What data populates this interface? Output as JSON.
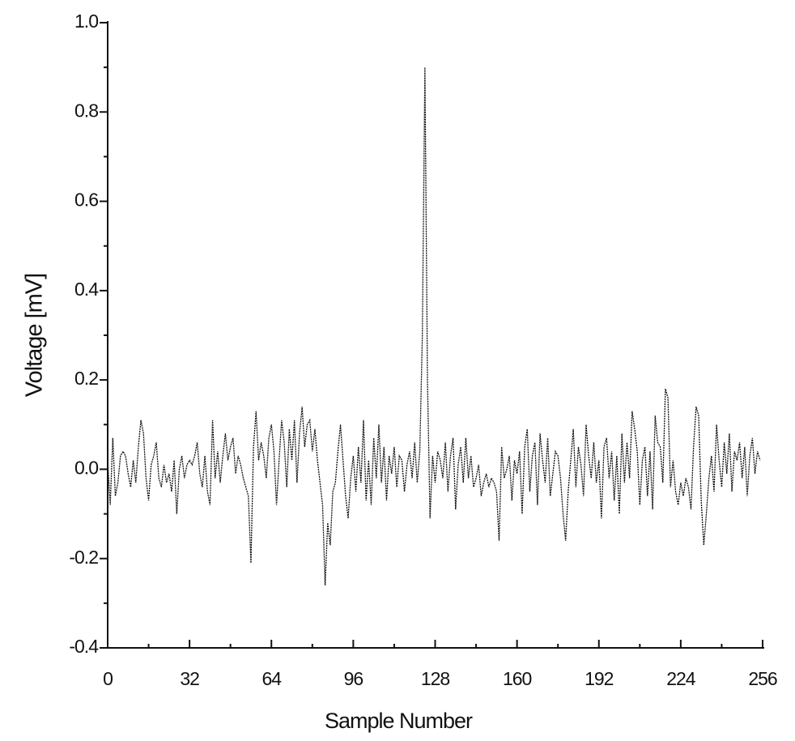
{
  "chart_data": {
    "type": "line",
    "xlabel": "Sample Number",
    "ylabel": "Voltage [mV]",
    "x": [
      0,
      1,
      2,
      3,
      4,
      5,
      6,
      7,
      8,
      9,
      10,
      11,
      12,
      13,
      14,
      15,
      16,
      17,
      18,
      19,
      20,
      21,
      22,
      23,
      24,
      25,
      26,
      27,
      28,
      29,
      30,
      31,
      32,
      33,
      34,
      35,
      36,
      37,
      38,
      39,
      40,
      41,
      42,
      43,
      44,
      45,
      46,
      47,
      48,
      49,
      50,
      51,
      52,
      53,
      54,
      55,
      56,
      57,
      58,
      59,
      60,
      61,
      62,
      63,
      64,
      65,
      66,
      67,
      68,
      69,
      70,
      71,
      72,
      73,
      74,
      75,
      76,
      77,
      78,
      79,
      80,
      81,
      82,
      83,
      84,
      85,
      86,
      87,
      88,
      89,
      90,
      91,
      92,
      93,
      94,
      95,
      96,
      97,
      98,
      99,
      100,
      101,
      102,
      103,
      104,
      105,
      106,
      107,
      108,
      109,
      110,
      111,
      112,
      113,
      114,
      115,
      116,
      117,
      118,
      119,
      120,
      121,
      122,
      123,
      124,
      125,
      126,
      127,
      128,
      129,
      130,
      131,
      132,
      133,
      134,
      135,
      136,
      137,
      138,
      139,
      140,
      141,
      142,
      143,
      144,
      145,
      146,
      147,
      148,
      149,
      150,
      151,
      152,
      153,
      154,
      155,
      156,
      157,
      158,
      159,
      160,
      161,
      162,
      163,
      164,
      165,
      166,
      167,
      168,
      169,
      170,
      171,
      172,
      173,
      174,
      175,
      176,
      177,
      178,
      179,
      180,
      181,
      182,
      183,
      184,
      185,
      186,
      187,
      188,
      189,
      190,
      191,
      192,
      193,
      194,
      195,
      196,
      197,
      198,
      199,
      200,
      201,
      202,
      203,
      204,
      205,
      206,
      207,
      208,
      209,
      210,
      211,
      212,
      213,
      214,
      215,
      216,
      217,
      218,
      219,
      220,
      221,
      222,
      223,
      224,
      225,
      226,
      227,
      228,
      229,
      230,
      231,
      232,
      233,
      234,
      235,
      236,
      237,
      238,
      239,
      240,
      241,
      242,
      243,
      244,
      245,
      246,
      247,
      248,
      249,
      250,
      251,
      252,
      253,
      254,
      255
    ],
    "series": [
      {
        "color": "#111111",
        "values": [
          0.02,
          -0.08,
          0.07,
          -0.06,
          -0.03,
          0.03,
          0.04,
          0.03,
          -0.01,
          -0.04,
          0.02,
          -0.03,
          0.05,
          0.11,
          0.08,
          -0.02,
          -0.07,
          0.01,
          0.03,
          0.06,
          -0.02,
          -0.04,
          0.01,
          -0.03,
          -0.01,
          -0.05,
          0.02,
          -0.1,
          0.0,
          0.03,
          -0.02,
          0.01,
          0.02,
          0.01,
          0.03,
          0.06,
          -0.01,
          -0.04,
          0.03,
          -0.05,
          -0.08,
          0.11,
          -0.02,
          0.04,
          -0.03,
          0.03,
          0.08,
          0.02,
          0.05,
          0.07,
          -0.01,
          0.03,
          0.01,
          -0.02,
          -0.04,
          -0.06,
          -0.21,
          0.05,
          0.13,
          0.02,
          0.06,
          0.03,
          -0.02,
          0.07,
          0.1,
          0.04,
          -0.08,
          0.02,
          0.11,
          0.06,
          -0.04,
          0.09,
          0.02,
          0.11,
          -0.03,
          0.08,
          0.14,
          0.05,
          0.1,
          0.11,
          0.04,
          0.09,
          0.02,
          -0.03,
          -0.08,
          -0.26,
          -0.12,
          -0.17,
          -0.05,
          -0.03,
          0.04,
          0.1,
          0.02,
          -0.06,
          -0.11,
          -0.02,
          0.03,
          -0.05,
          0.05,
          -0.03,
          0.11,
          -0.07,
          0.02,
          -0.08,
          0.07,
          -0.02,
          0.1,
          -0.03,
          0.05,
          -0.07,
          0.03,
          -0.01,
          0.05,
          -0.04,
          0.03,
          0.02,
          -0.05,
          0.01,
          0.04,
          -0.02,
          0.06,
          -0.03,
          0.04,
          0.3,
          0.9,
          0.2,
          -0.11,
          0.03,
          -0.03,
          0.04,
          0.02,
          -0.02,
          0.06,
          -0.05,
          0.03,
          0.07,
          -0.09,
          0.01,
          0.05,
          -0.03,
          0.07,
          -0.02,
          0.03,
          -0.04,
          -0.02,
          0.01,
          -0.06,
          -0.03,
          -0.01,
          -0.04,
          -0.02,
          -0.03,
          -0.05,
          -0.16,
          0.05,
          -0.02,
          0.0,
          0.03,
          -0.07,
          0.02,
          -0.01,
          0.04,
          -0.1,
          0.05,
          0.09,
          -0.05,
          0.03,
          0.06,
          -0.08,
          0.08,
          0.02,
          -0.03,
          0.07,
          -0.06,
          -0.01,
          0.04,
          0.03,
          -0.02,
          -0.1,
          -0.16,
          -0.05,
          0.02,
          0.09,
          -0.04,
          0.05,
          0.01,
          -0.06,
          0.1,
          0.03,
          -0.02,
          0.06,
          -0.03,
          0.02,
          -0.11,
          0.05,
          0.07,
          -0.02,
          0.04,
          -0.07,
          0.03,
          -0.1,
          0.08,
          -0.03,
          0.06,
          -0.02,
          0.13,
          0.09,
          0.04,
          -0.08,
          0.02,
          0.05,
          -0.06,
          0.04,
          -0.09,
          0.12,
          0.06,
          0.05,
          -0.03,
          0.18,
          0.16,
          -0.04,
          0.02,
          -0.05,
          -0.08,
          -0.03,
          -0.06,
          -0.02,
          -0.04,
          -0.09,
          0.05,
          0.14,
          0.12,
          -0.07,
          -0.17,
          -0.1,
          -0.02,
          0.03,
          -0.05,
          0.1,
          0.02,
          -0.04,
          0.06,
          -0.01,
          0.08,
          -0.05,
          0.04,
          0.02,
          0.06,
          -0.02,
          0.05,
          -0.06,
          0.03,
          0.07,
          -0.01,
          0.04,
          0.02
        ]
      }
    ],
    "xlim": [
      0,
      256
    ],
    "xticks": [
      0,
      32,
      64,
      96,
      128,
      160,
      192,
      224,
      256
    ],
    "ylim": [
      -0.4,
      1
    ],
    "yticks": [
      -0.4,
      -0.2,
      {
        "value": 0,
        "label": "0.0"
      },
      0.2,
      0.4,
      0.6,
      0.8,
      {
        "value": 1,
        "label": "1.0"
      }
    ],
    "grid": false
  }
}
